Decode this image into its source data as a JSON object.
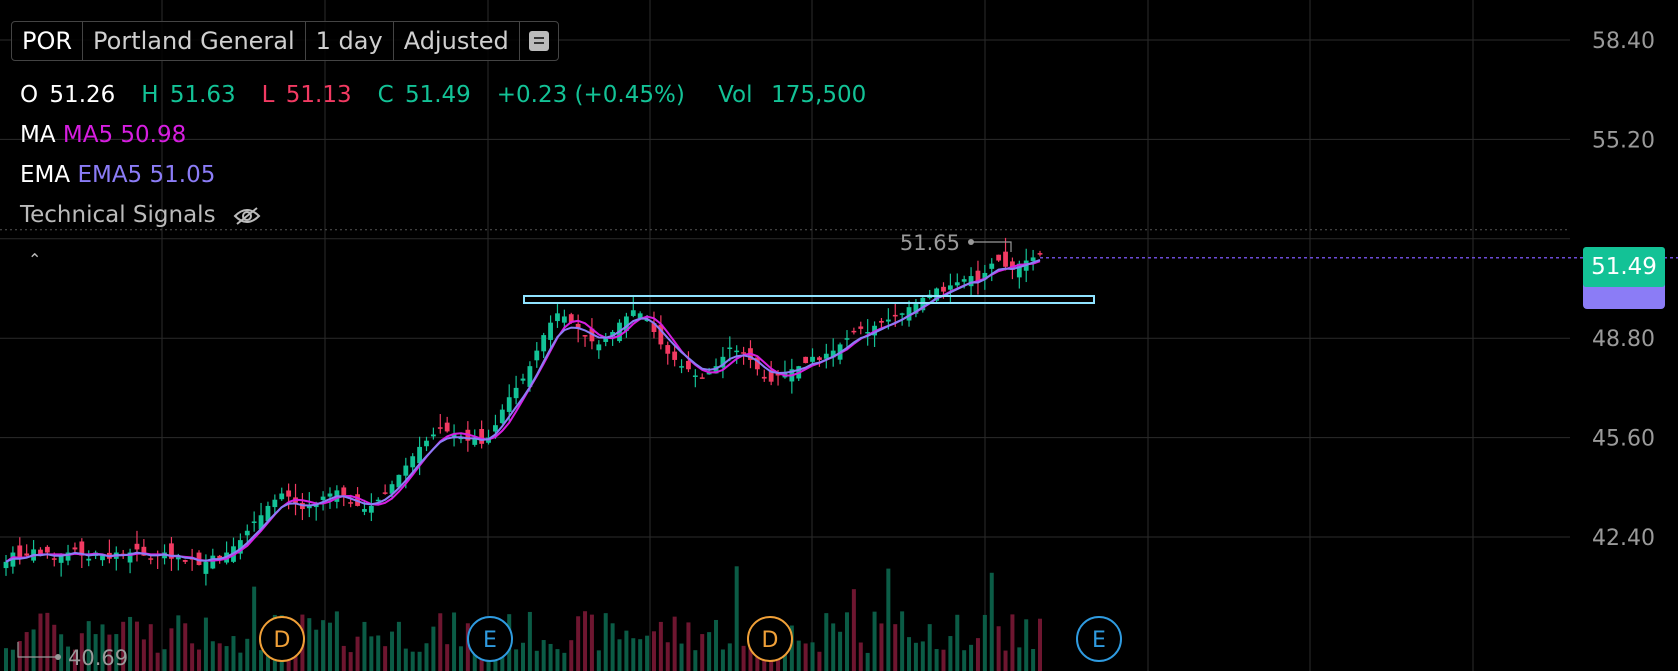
{
  "toolbar": {
    "symbol": "POR",
    "name": "Portland General",
    "interval": "1 day",
    "adjustment": "Adjusted",
    "menu_icon": "list-icon"
  },
  "ohlc": {
    "o_label": "O",
    "o_value": "51.26",
    "h_label": "H",
    "h_value": "51.63",
    "l_label": "L",
    "l_value": "51.13",
    "c_label": "C",
    "c_value": "51.49",
    "change": "+0.23 (+0.45%)",
    "vol_label": "Vol",
    "vol_value": "175,500"
  },
  "indicators": {
    "ma_label": "MA",
    "ma_value": "MA5 50.98",
    "ema_label": "EMA",
    "ema_value": "EMA5 51.05",
    "signals_label": "Technical Signals"
  },
  "colors": {
    "up": "#13c296",
    "down": "#f23a62",
    "ma": "#d61ee0",
    "ema": "#8b7cf6",
    "grid": "#2b2b2b",
    "box": "#8fe3ff"
  },
  "chart_data": {
    "type": "candlestick",
    "yaxis_ticks": [
      58.4,
      55.2,
      48.8,
      45.6,
      42.4
    ],
    "ylim": [
      39.4,
      60.2
    ],
    "last_price": "51.49",
    "high_marker": "51.65",
    "low_marker": "40.69",
    "events": [
      "D",
      "E",
      "D",
      "E"
    ],
    "closes": [
      41.6,
      41.9,
      41.7,
      41.8,
      42.0,
      41.8,
      41.9,
      41.7,
      41.8,
      41.9,
      42.0,
      41.8,
      41.7,
      41.9,
      41.8,
      41.7,
      41.9,
      41.8,
      41.9,
      42.0,
      41.8,
      41.7,
      41.8,
      41.9,
      41.7,
      41.8,
      41.6,
      41.7,
      41.5,
      41.6,
      41.8,
      41.7,
      41.9,
      42.1,
      42.3,
      42.6,
      42.9,
      43.1,
      43.4,
      43.6,
      43.8,
      43.7,
      43.5,
      43.3,
      43.4,
      43.5,
      43.7,
      43.8,
      43.9,
      43.7,
      43.5,
      43.4,
      43.3,
      43.4,
      43.6,
      43.8,
      44.1,
      44.4,
      44.7,
      45.0,
      45.3,
      45.5,
      45.7,
      45.9,
      45.8,
      45.7,
      45.6,
      45.5,
      45.6,
      45.4,
      45.6,
      46.0,
      46.5,
      46.9,
      47.2,
      47.5,
      47.9,
      48.4,
      48.9,
      49.3,
      49.6,
      49.5,
      49.3,
      49.1,
      48.9,
      48.7,
      48.6,
      48.8,
      49.0,
      49.3,
      49.5,
      49.7,
      49.6,
      49.4,
      49.0,
      48.6,
      48.3,
      48.1,
      47.9,
      47.8,
      47.6,
      47.5,
      47.7,
      47.9,
      48.2,
      48.5,
      48.4,
      48.3,
      48.1,
      47.8,
      47.5,
      47.4,
      47.6,
      47.7,
      47.8,
      47.9,
      48.0,
      48.2,
      48.1,
      48.3,
      48.4,
      48.6,
      48.8,
      49.0,
      49.1,
      49.0,
      49.2,
      49.3,
      49.4,
      49.5,
      49.6,
      49.8,
      49.9,
      50.1,
      50.2,
      50.4,
      50.3,
      50.5,
      50.6,
      50.7,
      50.8,
      50.6,
      50.9,
      51.2,
      51.3,
      51.1,
      51.0,
      51.2,
      51.3,
      51.4,
      51.49
    ],
    "volume_spikes": [
      36,
      106,
      123,
      128,
      143
    ]
  },
  "events_text": {
    "d": "D",
    "e": "E"
  }
}
